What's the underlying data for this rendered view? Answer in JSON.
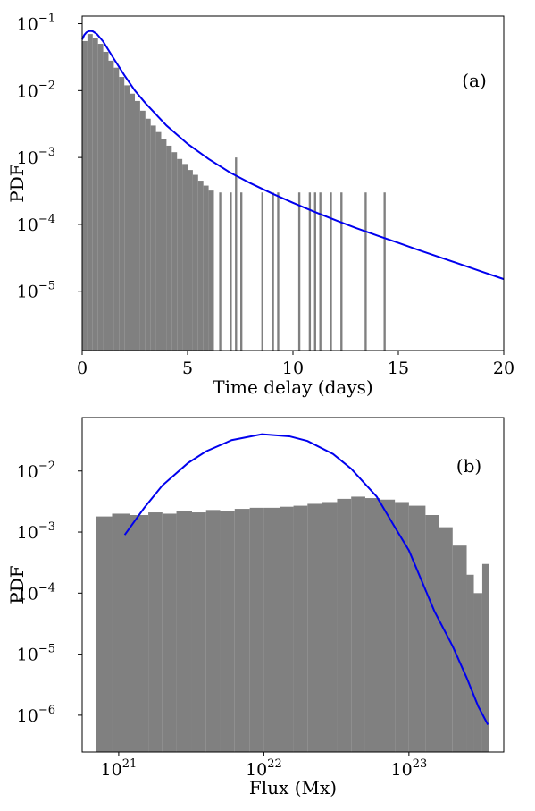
{
  "chart_data": [
    {
      "type": "bar",
      "panel_label": "(a)",
      "xlabel": "Time delay (days)",
      "ylabel": "PDF",
      "xlim": [
        0,
        20
      ],
      "ylim": [
        1.3e-06,
        0.13
      ],
      "yscale": "log",
      "grid": false,
      "bar_color": "#808080",
      "line_color": "#0000ee",
      "x_ticks": [
        {
          "value": 0,
          "label": "0"
        },
        {
          "value": 5,
          "label": "5"
        },
        {
          "value": 10,
          "label": "10"
        },
        {
          "value": 15,
          "label": "15"
        },
        {
          "value": 20,
          "label": "20"
        }
      ],
      "y_ticks": [
        {
          "value": 1e-05,
          "base": "10",
          "exp": "−5"
        },
        {
          "value": 0.0001,
          "base": "10",
          "exp": "−4"
        },
        {
          "value": 0.001,
          "base": "10",
          "exp": "−3"
        },
        {
          "value": 0.01,
          "base": "10",
          "exp": "−2"
        },
        {
          "value": 0.1,
          "base": "10",
          "exp": "−1"
        }
      ],
      "histogram": {
        "bin_width": 0.05,
        "bins": [
          [
            0.0,
            0.055
          ],
          [
            0.25,
            0.07
          ],
          [
            0.5,
            0.062
          ],
          [
            0.75,
            0.05
          ],
          [
            1.0,
            0.038
          ],
          [
            1.25,
            0.028
          ],
          [
            1.5,
            0.022
          ],
          [
            1.75,
            0.016
          ],
          [
            2.0,
            0.012
          ],
          [
            2.25,
            0.009
          ],
          [
            2.5,
            0.007
          ],
          [
            2.75,
            0.005
          ],
          [
            3.0,
            0.0038
          ],
          [
            3.25,
            0.003
          ],
          [
            3.5,
            0.0024
          ],
          [
            3.75,
            0.0019
          ],
          [
            4.0,
            0.0015
          ],
          [
            4.25,
            0.0012
          ],
          [
            4.5,
            0.00095
          ],
          [
            4.75,
            0.0008
          ],
          [
            5.0,
            0.00065
          ],
          [
            5.25,
            0.00055
          ],
          [
            5.5,
            0.00045
          ],
          [
            5.75,
            0.00038
          ],
          [
            6.0,
            0.00032
          ],
          [
            6.5,
            0.0003
          ],
          [
            7.0,
            0.0003
          ],
          [
            7.25,
            0.001
          ],
          [
            7.5,
            0.0003
          ],
          [
            8.5,
            0.0003
          ],
          [
            9.0,
            0.0003
          ],
          [
            9.25,
            0.0003
          ],
          [
            10.25,
            0.0003
          ],
          [
            10.75,
            0.0003
          ],
          [
            11.0,
            0.0003
          ],
          [
            11.25,
            0.0003
          ],
          [
            11.75,
            0.0003
          ],
          [
            12.25,
            0.0003
          ],
          [
            13.4,
            0.0003
          ],
          [
            14.3,
            0.0003
          ]
        ]
      },
      "fit_curve": {
        "x": [
          0.0,
          0.1,
          0.2,
          0.3,
          0.4,
          0.5,
          0.7,
          1.0,
          1.5,
          2.0,
          2.5,
          3.0,
          4.0,
          5.0,
          6.0,
          7.0,
          8.0,
          9.0,
          10.0,
          11.0,
          12.0,
          13.0,
          14.0,
          15.0,
          16.0,
          17.0,
          18.0,
          19.0,
          20.0
        ],
        "y": [
          0.058,
          0.068,
          0.074,
          0.077,
          0.078,
          0.077,
          0.07,
          0.054,
          0.03,
          0.017,
          0.01,
          0.0065,
          0.003,
          0.0016,
          0.00095,
          0.0006,
          0.00041,
          0.00029,
          0.00021,
          0.000155,
          0.000116,
          8.8e-05,
          6.8e-05,
          5.3e-05,
          4.1e-05,
          3.2e-05,
          2.5e-05,
          1.95e-05,
          1.52e-05
        ]
      }
    },
    {
      "type": "bar",
      "panel_label": "(b)",
      "xlabel": "Flux (Mx)",
      "ylabel": "PDF",
      "xlim": [
        5.6e+20,
        4.5e+23
      ],
      "ylim": [
        2.5e-07,
        0.075
      ],
      "xscale": "log",
      "yscale": "log",
      "grid": false,
      "bar_color": "#808080",
      "line_color": "#0000ee",
      "x_ticks": [
        {
          "value": 1e+21,
          "base": "10",
          "exp": "21"
        },
        {
          "value": 1e+22,
          "base": "10",
          "exp": "22"
        },
        {
          "value": 1e+23,
          "base": "10",
          "exp": "23"
        }
      ],
      "y_ticks": [
        {
          "value": 1e-06,
          "base": "10",
          "exp": "−6"
        },
        {
          "value": 1e-05,
          "base": "10",
          "exp": "−5"
        },
        {
          "value": 0.0001,
          "base": "10",
          "exp": "−4"
        },
        {
          "value": 0.001,
          "base": "10",
          "exp": "−3"
        },
        {
          "value": 0.01,
          "base": "10",
          "exp": "−2"
        }
      ],
      "histogram": {
        "bins": [
          [
            7e+20,
            0.0018
          ],
          [
            9e+20,
            0.002
          ],
          [
            1.2e+21,
            0.0019
          ],
          [
            1.6e+21,
            0.0021
          ],
          [
            2e+21,
            0.002
          ],
          [
            2.5e+21,
            0.0022
          ],
          [
            3.2e+21,
            0.0021
          ],
          [
            4e+21,
            0.0023
          ],
          [
            5e+21,
            0.0022
          ],
          [
            6.3e+21,
            0.0024
          ],
          [
            8e+21,
            0.0025
          ],
          [
            1e+22,
            0.0025
          ],
          [
            1.3e+22,
            0.0026
          ],
          [
            1.6e+22,
            0.0027
          ],
          [
            2e+22,
            0.0029
          ],
          [
            2.5e+22,
            0.0031
          ],
          [
            3.2e+22,
            0.0035
          ],
          [
            4e+22,
            0.0038
          ],
          [
            5e+22,
            0.0036
          ],
          [
            6.3e+22,
            0.0034
          ],
          [
            8e+22,
            0.0031
          ],
          [
            1e+23,
            0.0027
          ],
          [
            1.3e+23,
            0.0019
          ],
          [
            1.6e+23,
            0.0012
          ],
          [
            2e+23,
            0.0006
          ],
          [
            2.5e+23,
            0.0002
          ],
          [
            2.8e+23,
            0.0001
          ],
          [
            3.2e+23,
            0.0003
          ]
        ]
      },
      "fit_curve": {
        "x": [
          1.1e+21,
          1.5e+21,
          2e+21,
          3e+21,
          4e+21,
          6e+21,
          9.7e+21,
          1.5e+22,
          2e+22,
          3e+22,
          4e+22,
          6e+22,
          8e+22,
          1e+23,
          1.5e+23,
          2e+23,
          2.5e+23,
          3e+23,
          3.5e+23
        ],
        "y": [
          0.0009,
          0.0025,
          0.0058,
          0.0135,
          0.021,
          0.032,
          0.04,
          0.037,
          0.031,
          0.019,
          0.0109,
          0.0038,
          0.0012,
          0.0005,
          5e-05,
          1.35e-05,
          4.1e-06,
          1.4e-06,
          7e-07
        ]
      }
    }
  ]
}
